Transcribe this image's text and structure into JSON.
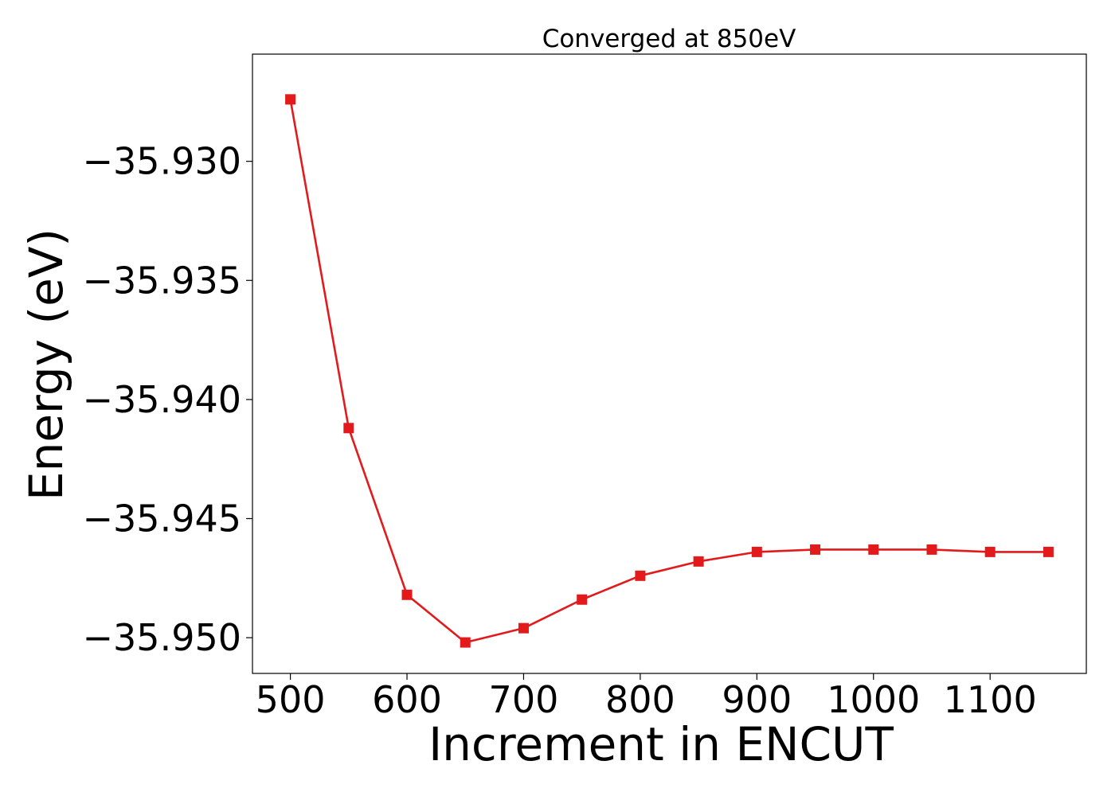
{
  "chart_data": {
    "type": "line",
    "title": "Converged at 850eV",
    "xlabel": "Increment in ENCUT",
    "ylabel": "Energy (eV)",
    "xlim": [
      467.5,
      1182.5
    ],
    "ylim": [
      -35.9515,
      -35.9255
    ],
    "x_ticks": [
      500,
      600,
      700,
      800,
      900,
      1000,
      1100
    ],
    "x_tick_labels": [
      "500",
      "600",
      "700",
      "800",
      "900",
      "1000",
      "1100"
    ],
    "y_ticks": [
      -35.93,
      -35.935,
      -35.94,
      -35.945,
      -35.95
    ],
    "y_tick_labels": [
      "−35.930",
      "−35.935",
      "−35.940",
      "−35.945",
      "−35.950"
    ],
    "grid": false,
    "legend": "none",
    "series": [
      {
        "color": "#e31a1c",
        "marker": "square",
        "x": [
          500,
          550,
          600,
          650,
          700,
          750,
          800,
          850,
          900,
          950,
          1000,
          1050,
          1100,
          1150
        ],
        "y": [
          -35.9274,
          -35.9412,
          -35.9482,
          -35.9502,
          -35.9496,
          -35.9484,
          -35.9474,
          -35.9468,
          -35.9464,
          -35.9463,
          -35.9463,
          -35.9463,
          -35.9464,
          -35.9464
        ]
      }
    ]
  }
}
